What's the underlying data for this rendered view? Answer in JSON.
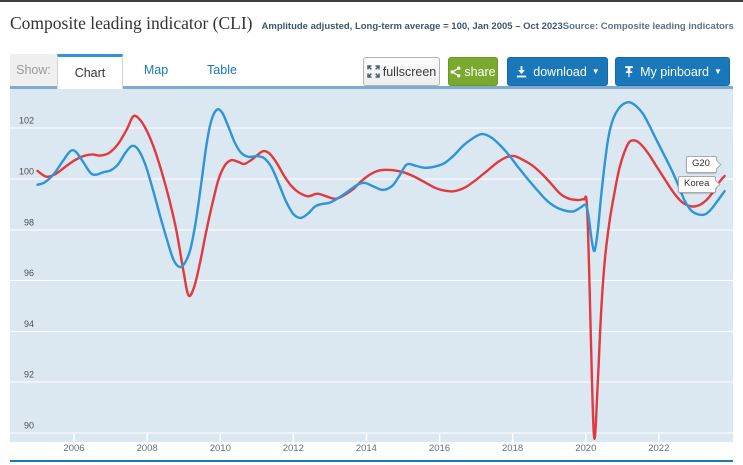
{
  "header": {
    "title": "Composite leading indicator (CLI)",
    "subtitle": "Amplitude adjusted, Long-term average = 100, Jan 2005 – Oct 2023",
    "source": "Source: Composite leading indicators"
  },
  "toolbar": {
    "show_label": "Show:",
    "tabs": [
      {
        "label": "Chart",
        "active": true
      },
      {
        "label": "Map",
        "active": false
      },
      {
        "label": "Table",
        "active": false
      }
    ],
    "buttons": {
      "fullscreen": "fullscreen",
      "share": "share",
      "download": "download",
      "pinboard": "My pinboard"
    },
    "caret": "▼"
  },
  "icons": {
    "fullscreen": "expand-arrows-icon",
    "share": "share-nodes-icon",
    "download": "download-arrow-icon",
    "pinboard": "pushpin-icon"
  },
  "colors": {
    "accent_blue": "#1878ba",
    "share_green": "#7aa92f",
    "plot_bg": "#dbe7f1",
    "gridline": "#ffffff",
    "g20_red": "#e2393f",
    "korea_blue": "#2d95d8",
    "bottom_rule": "#1b79b5",
    "tab_underline": "#7fabce",
    "axis_label": "#5d7285",
    "y_label": "#4f4f4f"
  },
  "chart_data": {
    "type": "line",
    "title": "Composite leading indicator (CLI)",
    "subtitle": "Amplitude adjusted, Long-term average = 100, Jan 2005 – Oct 2023",
    "xlabel": "",
    "ylabel": "",
    "grid": true,
    "legend_position": "end-of-line-callouts",
    "x_range": [
      2005.0,
      2023.83
    ],
    "y_axis": {
      "ticks": [
        102,
        100,
        98,
        96,
        94,
        92,
        90
      ],
      "range": [
        89.4,
        103.3
      ]
    },
    "x_axis": {
      "ticks": [
        2006,
        2008,
        2010,
        2012,
        2014,
        2016,
        2018,
        2020,
        2022
      ]
    },
    "series": [
      {
        "name": "G20",
        "color": "#e2393f",
        "data": [
          [
            2005.0,
            100.3
          ],
          [
            2005.25,
            100.07
          ],
          [
            2005.5,
            100.18
          ],
          [
            2005.75,
            100.45
          ],
          [
            2006.0,
            100.7
          ],
          [
            2006.25,
            100.88
          ],
          [
            2006.5,
            100.95
          ],
          [
            2006.7,
            100.9
          ],
          [
            2006.95,
            101.0
          ],
          [
            2007.2,
            101.35
          ],
          [
            2007.45,
            101.95
          ],
          [
            2007.62,
            102.45
          ],
          [
            2007.8,
            102.32
          ],
          [
            2008.0,
            101.85
          ],
          [
            2008.2,
            101.15
          ],
          [
            2008.4,
            100.25
          ],
          [
            2008.6,
            99.2
          ],
          [
            2008.8,
            97.95
          ],
          [
            2009.0,
            96.3
          ],
          [
            2009.13,
            95.4
          ],
          [
            2009.28,
            95.7
          ],
          [
            2009.45,
            96.7
          ],
          [
            2009.62,
            97.95
          ],
          [
            2009.8,
            99.1
          ],
          [
            2009.95,
            99.95
          ],
          [
            2010.12,
            100.5
          ],
          [
            2010.3,
            100.72
          ],
          [
            2010.5,
            100.65
          ],
          [
            2010.65,
            100.57
          ],
          [
            2010.82,
            100.7
          ],
          [
            2011.0,
            100.9
          ],
          [
            2011.18,
            101.08
          ],
          [
            2011.35,
            100.98
          ],
          [
            2011.55,
            100.6
          ],
          [
            2011.75,
            100.1
          ],
          [
            2011.95,
            99.7
          ],
          [
            2012.15,
            99.45
          ],
          [
            2012.4,
            99.3
          ],
          [
            2012.65,
            99.4
          ],
          [
            2012.9,
            99.3
          ],
          [
            2013.15,
            99.2
          ],
          [
            2013.4,
            99.35
          ],
          [
            2013.65,
            99.6
          ],
          [
            2013.9,
            99.95
          ],
          [
            2014.15,
            100.2
          ],
          [
            2014.4,
            100.33
          ],
          [
            2014.7,
            100.33
          ],
          [
            2015.0,
            100.25
          ],
          [
            2015.3,
            100.08
          ],
          [
            2015.6,
            99.85
          ],
          [
            2015.9,
            99.62
          ],
          [
            2016.15,
            99.52
          ],
          [
            2016.4,
            99.5
          ],
          [
            2016.7,
            99.65
          ],
          [
            2017.0,
            99.95
          ],
          [
            2017.3,
            100.3
          ],
          [
            2017.6,
            100.65
          ],
          [
            2017.85,
            100.85
          ],
          [
            2018.05,
            100.88
          ],
          [
            2018.3,
            100.72
          ],
          [
            2018.55,
            100.5
          ],
          [
            2018.8,
            100.18
          ],
          [
            2019.05,
            99.8
          ],
          [
            2019.3,
            99.4
          ],
          [
            2019.55,
            99.2
          ],
          [
            2019.8,
            99.15
          ],
          [
            2019.95,
            99.18
          ],
          [
            2020.03,
            99.0
          ],
          [
            2020.1,
            96.0
          ],
          [
            2020.17,
            92.0
          ],
          [
            2020.24,
            89.75
          ],
          [
            2020.33,
            92.0
          ],
          [
            2020.43,
            95.0
          ],
          [
            2020.53,
            96.9
          ],
          [
            2020.65,
            98.3
          ],
          [
            2020.78,
            99.4
          ],
          [
            2020.92,
            100.4
          ],
          [
            2021.06,
            101.05
          ],
          [
            2021.2,
            101.45
          ],
          [
            2021.38,
            101.48
          ],
          [
            2021.55,
            101.28
          ],
          [
            2021.75,
            100.9
          ],
          [
            2021.95,
            100.45
          ],
          [
            2022.15,
            100.0
          ],
          [
            2022.4,
            99.45
          ],
          [
            2022.65,
            99.05
          ],
          [
            2022.9,
            98.9
          ],
          [
            2023.1,
            98.95
          ],
          [
            2023.3,
            99.15
          ],
          [
            2023.5,
            99.5
          ],
          [
            2023.65,
            99.85
          ],
          [
            2023.8,
            100.1
          ]
        ]
      },
      {
        "name": "Korea",
        "color": "#2d95d8",
        "data": [
          [
            2005.0,
            99.75
          ],
          [
            2005.2,
            99.85
          ],
          [
            2005.45,
            100.18
          ],
          [
            2005.7,
            100.7
          ],
          [
            2005.9,
            101.08
          ],
          [
            2006.05,
            101.05
          ],
          [
            2006.25,
            100.65
          ],
          [
            2006.45,
            100.22
          ],
          [
            2006.6,
            100.15
          ],
          [
            2006.8,
            100.25
          ],
          [
            2007.0,
            100.32
          ],
          [
            2007.2,
            100.55
          ],
          [
            2007.4,
            101.0
          ],
          [
            2007.58,
            101.28
          ],
          [
            2007.75,
            101.15
          ],
          [
            2007.95,
            100.55
          ],
          [
            2008.15,
            99.6
          ],
          [
            2008.35,
            98.55
          ],
          [
            2008.55,
            97.55
          ],
          [
            2008.72,
            96.8
          ],
          [
            2008.88,
            96.52
          ],
          [
            2009.02,
            96.65
          ],
          [
            2009.18,
            97.2
          ],
          [
            2009.33,
            98.3
          ],
          [
            2009.48,
            99.8
          ],
          [
            2009.62,
            101.3
          ],
          [
            2009.75,
            102.25
          ],
          [
            2009.9,
            102.7
          ],
          [
            2010.05,
            102.6
          ],
          [
            2010.22,
            102.05
          ],
          [
            2010.4,
            101.4
          ],
          [
            2010.58,
            101.0
          ],
          [
            2010.78,
            100.85
          ],
          [
            2011.0,
            100.88
          ],
          [
            2011.2,
            100.8
          ],
          [
            2011.4,
            100.45
          ],
          [
            2011.6,
            99.8
          ],
          [
            2011.8,
            99.1
          ],
          [
            2012.0,
            98.6
          ],
          [
            2012.2,
            98.45
          ],
          [
            2012.4,
            98.62
          ],
          [
            2012.6,
            98.9
          ],
          [
            2012.8,
            99.0
          ],
          [
            2013.0,
            99.05
          ],
          [
            2013.25,
            99.25
          ],
          [
            2013.5,
            99.5
          ],
          [
            2013.75,
            99.75
          ],
          [
            2013.95,
            99.83
          ],
          [
            2014.2,
            99.68
          ],
          [
            2014.45,
            99.55
          ],
          [
            2014.7,
            99.7
          ],
          [
            2014.9,
            100.1
          ],
          [
            2015.1,
            100.55
          ],
          [
            2015.35,
            100.5
          ],
          [
            2015.6,
            100.42
          ],
          [
            2015.9,
            100.48
          ],
          [
            2016.15,
            100.62
          ],
          [
            2016.4,
            100.92
          ],
          [
            2016.65,
            101.3
          ],
          [
            2016.9,
            101.57
          ],
          [
            2017.15,
            101.75
          ],
          [
            2017.4,
            101.63
          ],
          [
            2017.65,
            101.32
          ],
          [
            2017.9,
            100.92
          ],
          [
            2018.15,
            100.45
          ],
          [
            2018.4,
            100.0
          ],
          [
            2018.65,
            99.58
          ],
          [
            2018.9,
            99.18
          ],
          [
            2019.15,
            98.9
          ],
          [
            2019.4,
            98.75
          ],
          [
            2019.65,
            98.7
          ],
          [
            2019.85,
            98.85
          ],
          [
            2020.0,
            98.95
          ],
          [
            2020.08,
            98.5
          ],
          [
            2020.16,
            97.6
          ],
          [
            2020.24,
            97.15
          ],
          [
            2020.33,
            97.95
          ],
          [
            2020.42,
            99.3
          ],
          [
            2020.52,
            100.6
          ],
          [
            2020.63,
            101.7
          ],
          [
            2020.75,
            102.35
          ],
          [
            2020.9,
            102.75
          ],
          [
            2021.05,
            102.95
          ],
          [
            2021.2,
            103.0
          ],
          [
            2021.38,
            102.85
          ],
          [
            2021.55,
            102.58
          ],
          [
            2021.72,
            102.15
          ],
          [
            2021.9,
            101.62
          ],
          [
            2022.1,
            101.05
          ],
          [
            2022.3,
            100.48
          ],
          [
            2022.5,
            99.85
          ],
          [
            2022.7,
            99.15
          ],
          [
            2022.9,
            98.72
          ],
          [
            2023.1,
            98.58
          ],
          [
            2023.28,
            98.6
          ],
          [
            2023.45,
            98.82
          ],
          [
            2023.62,
            99.15
          ],
          [
            2023.8,
            99.5
          ]
        ]
      }
    ]
  }
}
